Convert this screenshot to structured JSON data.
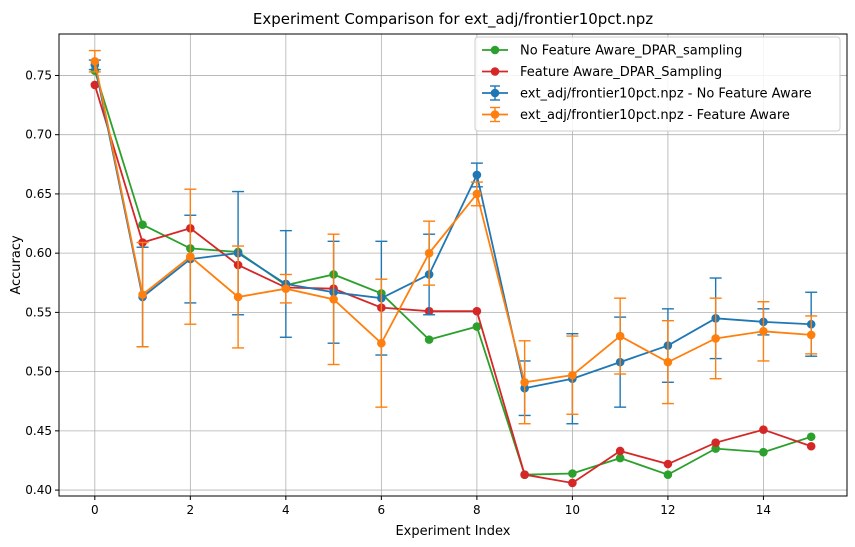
{
  "chart_data": {
    "type": "line",
    "title": "Experiment Comparison for ext_adj/frontier10pct.npz",
    "xlabel": "Experiment Index",
    "ylabel": "Accuracy",
    "xlim": [
      -0.75,
      15.75
    ],
    "ylim": [
      0.395,
      0.785
    ],
    "xticks": [
      0,
      2,
      4,
      6,
      8,
      10,
      12,
      14
    ],
    "yticks": [
      0.4,
      0.45,
      0.5,
      0.55,
      0.6,
      0.65,
      0.7,
      0.75
    ],
    "xtick_labels": [
      "0",
      "2",
      "4",
      "6",
      "8",
      "10",
      "12",
      "14"
    ],
    "ytick_labels": [
      "0.40",
      "0.45",
      "0.50",
      "0.55",
      "0.60",
      "0.65",
      "0.70",
      "0.75"
    ],
    "grid": true,
    "legend_position": "top-right",
    "x": [
      0,
      1,
      2,
      3,
      4,
      5,
      6,
      7,
      8,
      9,
      10,
      11,
      12,
      13,
      14,
      15
    ],
    "series": [
      {
        "name": "No Feature Aware_DPAR_sampling",
        "color": "#2ca02c",
        "errorbars": false,
        "values": [
          0.754,
          0.624,
          0.604,
          0.601,
          0.573,
          0.582,
          0.566,
          0.527,
          0.538,
          0.413,
          0.414,
          0.427,
          0.413,
          0.435,
          0.432,
          0.445
        ]
      },
      {
        "name": "Feature Aware_DPAR_Sampling",
        "color": "#d62728",
        "errorbars": false,
        "values": [
          0.742,
          0.609,
          0.621,
          0.59,
          0.571,
          0.57,
          0.554,
          0.551,
          0.551,
          0.413,
          0.406,
          0.433,
          0.422,
          0.44,
          0.451,
          0.437
        ]
      },
      {
        "name": "ext_adj/frontier10pct.npz - No Feature Aware",
        "color": "#1f77b4",
        "errorbars": true,
        "values": [
          0.759,
          0.563,
          0.595,
          0.6,
          0.574,
          0.567,
          0.562,
          0.582,
          0.666,
          0.486,
          0.494,
          0.508,
          0.522,
          0.545,
          0.542,
          0.54
        ],
        "errors": [
          0.004,
          0.042,
          0.037,
          0.052,
          0.045,
          0.043,
          0.048,
          0.034,
          0.01,
          0.023,
          0.038,
          0.038,
          0.031,
          0.034,
          0.011,
          0.027
        ]
      },
      {
        "name": "ext_adj/frontier10pct.npz - Feature Aware",
        "color": "#ff7f0e",
        "errorbars": true,
        "values": [
          0.762,
          0.565,
          0.597,
          0.563,
          0.57,
          0.561,
          0.524,
          0.6,
          0.65,
          0.491,
          0.497,
          0.53,
          0.508,
          0.528,
          0.534,
          0.531
        ],
        "errors": [
          0.009,
          0.044,
          0.057,
          0.043,
          0.012,
          0.055,
          0.054,
          0.027,
          0.01,
          0.035,
          0.033,
          0.032,
          0.035,
          0.034,
          0.025,
          0.016
        ]
      }
    ]
  }
}
